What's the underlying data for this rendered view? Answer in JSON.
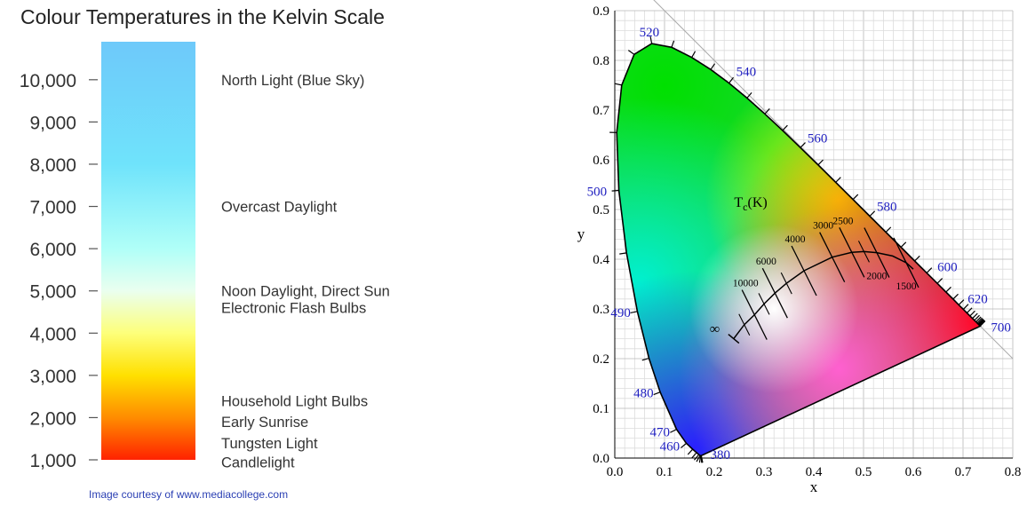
{
  "kelvin_panel": {
    "title": "Colour Temperatures in the Kelvin Scale",
    "credit": "Image courtesy of www.mediacollege.com"
  },
  "chromaticity_panel": {},
  "chart_data": [
    {
      "type": "bar",
      "title": "Colour Temperatures in the Kelvin Scale",
      "ylim": [
        1000,
        10900
      ],
      "ticks": [
        {
          "value": 1000,
          "label": "1,000"
        },
        {
          "value": 2000,
          "label": "2,000"
        },
        {
          "value": 3000,
          "label": "3,000"
        },
        {
          "value": 4000,
          "label": "4,000"
        },
        {
          "value": 5000,
          "label": "5,000"
        },
        {
          "value": 6000,
          "label": "6,000"
        },
        {
          "value": 7000,
          "label": "7,000"
        },
        {
          "value": 8000,
          "label": "8,000"
        },
        {
          "value": 9000,
          "label": "9,000"
        },
        {
          "value": 10000,
          "label": "10,000"
        }
      ],
      "gradient": [
        {
          "value": 1000,
          "color": "#ff2200"
        },
        {
          "value": 2000,
          "color": "#ff8c00"
        },
        {
          "value": 3000,
          "color": "#ffe000"
        },
        {
          "value": 4000,
          "color": "#fdff7a"
        },
        {
          "value": 5000,
          "color": "#eaffef"
        },
        {
          "value": 6000,
          "color": "#b0fff8"
        },
        {
          "value": 8000,
          "color": "#6fe3fb"
        },
        {
          "value": 10900,
          "color": "#6ec9fa"
        }
      ],
      "annotations": [
        {
          "value": 10000,
          "text": "North Light (Blue Sky)"
        },
        {
          "value": 7000,
          "text": "Overcast Daylight"
        },
        {
          "value": 5000,
          "text": "Noon Daylight, Direct Sun"
        },
        {
          "value": 4600,
          "text": "Electronic Flash Bulbs"
        },
        {
          "value": 2400,
          "text": "Household Light Bulbs"
        },
        {
          "value": 1900,
          "text": "Early Sunrise"
        },
        {
          "value": 1400,
          "text": "Tungsten Light"
        },
        {
          "value": 950,
          "text": "Candlelight"
        }
      ]
    },
    {
      "type": "line",
      "xlabel": "x",
      "ylabel": "y",
      "xlim": [
        0.0,
        0.8
      ],
      "ylim": [
        0.0,
        0.9
      ],
      "xticks": [
        {
          "value": 0.0,
          "label": "0.0"
        },
        {
          "value": 0.1,
          "label": "0.1"
        },
        {
          "value": 0.2,
          "label": "0.2"
        },
        {
          "value": 0.3,
          "label": "0.3"
        },
        {
          "value": 0.4,
          "label": "0.4"
        },
        {
          "value": 0.5,
          "label": "0.5"
        },
        {
          "value": 0.6,
          "label": "0.6"
        },
        {
          "value": 0.7,
          "label": "0.7"
        },
        {
          "value": 0.8,
          "label": "0.8"
        }
      ],
      "yticks": [
        {
          "value": 0.0,
          "label": "0.0"
        },
        {
          "value": 0.1,
          "label": "0.1"
        },
        {
          "value": 0.2,
          "label": "0.2"
        },
        {
          "value": 0.3,
          "label": "0.3"
        },
        {
          "value": 0.4,
          "label": "0.4"
        },
        {
          "value": 0.5,
          "label": "0.5"
        },
        {
          "value": 0.6,
          "label": "0.6"
        },
        {
          "value": 0.7,
          "label": "0.7"
        },
        {
          "value": 0.8,
          "label": "0.8"
        },
        {
          "value": 0.9,
          "label": "0.9"
        }
      ],
      "grid": true,
      "spectral_locus": [
        [
          0.1741,
          0.005
        ],
        [
          0.1738,
          0.0049
        ],
        [
          0.1736,
          0.0049
        ],
        [
          0.1733,
          0.0048
        ],
        [
          0.1726,
          0.0048
        ],
        [
          0.1714,
          0.0051
        ],
        [
          0.1689,
          0.0069
        ],
        [
          0.1644,
          0.0109
        ],
        [
          0.1566,
          0.0177
        ],
        [
          0.144,
          0.0297
        ],
        [
          0.1241,
          0.0578
        ],
        [
          0.0913,
          0.1327
        ],
        [
          0.0687,
          0.2007
        ],
        [
          0.0454,
          0.295
        ],
        [
          0.0235,
          0.4127
        ],
        [
          0.0082,
          0.5384
        ],
        [
          0.0039,
          0.6548
        ],
        [
          0.0139,
          0.7502
        ],
        [
          0.0389,
          0.812
        ],
        [
          0.0743,
          0.8338
        ],
        [
          0.1142,
          0.8262
        ],
        [
          0.1547,
          0.8059
        ],
        [
          0.1929,
          0.7816
        ],
        [
          0.2296,
          0.7543
        ],
        [
          0.2658,
          0.7243
        ],
        [
          0.3016,
          0.6923
        ],
        [
          0.3373,
          0.6589
        ],
        [
          0.3731,
          0.6245
        ],
        [
          0.4087,
          0.5896
        ],
        [
          0.4441,
          0.5547
        ],
        [
          0.4788,
          0.5202
        ],
        [
          0.5125,
          0.4866
        ],
        [
          0.5448,
          0.4544
        ],
        [
          0.5752,
          0.4242
        ],
        [
          0.6029,
          0.3965
        ],
        [
          0.627,
          0.3725
        ],
        [
          0.6482,
          0.3514
        ],
        [
          0.6658,
          0.334
        ],
        [
          0.6801,
          0.3197
        ],
        [
          0.6915,
          0.3083
        ],
        [
          0.7006,
          0.2993
        ],
        [
          0.7079,
          0.292
        ],
        [
          0.714,
          0.2859
        ],
        [
          0.719,
          0.2809
        ],
        [
          0.723,
          0.277
        ],
        [
          0.726,
          0.274
        ],
        [
          0.7283,
          0.2717
        ],
        [
          0.73,
          0.27
        ],
        [
          0.7311,
          0.2689
        ],
        [
          0.732,
          0.268
        ],
        [
          0.7327,
          0.2673
        ],
        [
          0.7334,
          0.2666
        ],
        [
          0.734,
          0.266
        ],
        [
          0.7344,
          0.2656
        ],
        [
          0.7347,
          0.2653
        ]
      ],
      "wavelength_labels": [
        {
          "text": "380",
          "x": 0.1741,
          "y": 0.005,
          "dx": 10,
          "dy": 4
        },
        {
          "text": "460",
          "x": 0.144,
          "y": 0.0297,
          "dx": -30,
          "dy": 8
        },
        {
          "text": "470",
          "x": 0.1241,
          "y": 0.0578,
          "dx": -30,
          "dy": 8
        },
        {
          "text": "480",
          "x": 0.0913,
          "y": 0.1327,
          "dx": -30,
          "dy": 6
        },
        {
          "text": "490",
          "x": 0.0454,
          "y": 0.295,
          "dx": -30,
          "dy": 6
        },
        {
          "text": "500",
          "x": 0.0082,
          "y": 0.5384,
          "dx": -36,
          "dy": 6
        },
        {
          "text": "520",
          "x": 0.0743,
          "y": 0.8338,
          "dx": -14,
          "dy": -8
        },
        {
          "text": "540",
          "x": 0.2296,
          "y": 0.7543,
          "dx": 8,
          "dy": -8
        },
        {
          "text": "560",
          "x": 0.3731,
          "y": 0.6245,
          "dx": 8,
          "dy": -6
        },
        {
          "text": "580",
          "x": 0.5125,
          "y": 0.4866,
          "dx": 8,
          "dy": -6
        },
        {
          "text": "600",
          "x": 0.627,
          "y": 0.3725,
          "dx": 12,
          "dy": -2
        },
        {
          "text": "620",
          "x": 0.6915,
          "y": 0.3083,
          "dx": 10,
          "dy": -2
        },
        {
          "text": "700",
          "x": 0.7347,
          "y": 0.2653,
          "dx": 12,
          "dy": 6
        }
      ],
      "planckian_locus": [
        [
          0.239,
          0.24
        ],
        [
          0.2603,
          0.2684
        ],
        [
          0.2807,
          0.2883
        ],
        [
          0.3,
          0.31
        ],
        [
          0.322,
          0.3318
        ],
        [
          0.3451,
          0.3516
        ],
        [
          0.3804,
          0.3768
        ],
        [
          0.4369,
          0.4041
        ],
        [
          0.4765,
          0.4137
        ],
        [
          0.5008,
          0.4153
        ],
        [
          0.5266,
          0.4133
        ],
        [
          0.5586,
          0.4065
        ],
        [
          0.5857,
          0.3931
        ],
        [
          0.6,
          0.38
        ]
      ],
      "isotherms": [
        {
          "label": "10000",
          "x": 0.2807,
          "y": 0.2883
        },
        {
          "label": "6000",
          "x": 0.322,
          "y": 0.3318
        },
        {
          "label": "4000",
          "x": 0.3804,
          "y": 0.3768
        },
        {
          "label": "3000",
          "x": 0.4369,
          "y": 0.4041
        },
        {
          "label": "2500",
          "x": 0.4765,
          "y": 0.4137
        },
        {
          "label": "2000",
          "x": 0.5266,
          "y": 0.4133
        },
        {
          "label": "1500",
          "x": 0.5857,
          "y": 0.3931
        }
      ],
      "infinity_label": "∞",
      "tc_label": "Tc(K)"
    }
  ]
}
